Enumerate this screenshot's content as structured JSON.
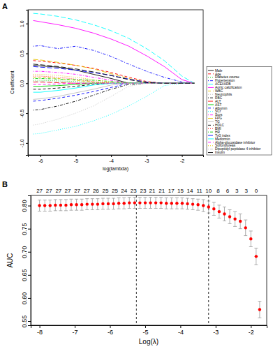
{
  "chart_data": [
    {
      "type": "line",
      "title": "A",
      "x_label": "log(lambda)",
      "y_label": "Coefficient",
      "x": [
        -6.2,
        -6,
        -5.5,
        -5,
        -4.5,
        -4,
        -3.5,
        -3,
        -2.5,
        -2,
        -1.65
      ],
      "xlim": [
        -6.35,
        -1.4
      ],
      "xticks": [
        -6,
        -5,
        -4,
        -3,
        -2
      ],
      "ylim": [
        -1.2,
        1.23
      ],
      "yticks": [
        {
          "value": -1,
          "label": "-1.0"
        },
        -0.5,
        {
          "value": 0,
          "label": "0.0"
        },
        0.5,
        {
          "value": 1,
          "label": "1.0"
        }
      ],
      "legend": "right",
      "series": [
        {
          "name": "Male",
          "color": "black",
          "line_style": "solid",
          "values": [
            0.3,
            0.29,
            0.27,
            0.22,
            0.15,
            0.08,
            0,
            0,
            0,
            0,
            0
          ]
        },
        {
          "name": "Age",
          "color": "red",
          "line_style": "dashed",
          "values": [
            0.38,
            0.37,
            0.34,
            0.3,
            0.25,
            0.18,
            0.1,
            0.03,
            0,
            0,
            0
          ]
        },
        {
          "name": "Diabetes course",
          "color": "#00cd00",
          "line_style": "dotted",
          "values": [
            0.05,
            0.05,
            0.04,
            0.03,
            0.01,
            0,
            0,
            0,
            0,
            0,
            0
          ]
        },
        {
          "name": "Hypertension",
          "color": "blue",
          "line_style": "dotdash",
          "values": [
            0.62,
            0.63,
            0.58,
            0.62,
            0.55,
            0.45,
            0.32,
            0.2,
            0.1,
            0.02,
            0
          ]
        },
        {
          "name": "ACEI/ARB",
          "color": "cyan",
          "line_style": "longdash",
          "values": [
            1.17,
            1.16,
            1.12,
            1.06,
            0.98,
            0.88,
            0.75,
            0.58,
            0.38,
            0.12,
            0
          ]
        },
        {
          "name": "Aortic calcification",
          "color": "magenta",
          "line_style": "solid",
          "values": [
            1.05,
            1.03,
            0.98,
            0.92,
            0.84,
            0.74,
            0.62,
            0.46,
            0.28,
            0.06,
            0
          ]
        },
        {
          "name": "WBC",
          "color": "#e6c200",
          "line_style": "dashed",
          "values": [
            0.1,
            0.1,
            0.08,
            0.05,
            0.02,
            0,
            0,
            0,
            0,
            0,
            0
          ]
        },
        {
          "name": "Neutrophils",
          "color": "#bebebe",
          "line_style": "dotted",
          "values": [
            -0.7,
            -0.68,
            -0.6,
            -0.5,
            -0.38,
            -0.22,
            -0.05,
            0,
            0,
            0,
            0
          ]
        },
        {
          "name": "RBC",
          "color": "black",
          "line_style": "dotdash",
          "values": [
            -0.45,
            -0.44,
            -0.38,
            -0.3,
            -0.2,
            -0.1,
            -0.02,
            0,
            0,
            0,
            0
          ]
        },
        {
          "name": "ALT",
          "color": "red",
          "line_style": "longdash",
          "values": [
            0.02,
            0.02,
            0.01,
            0,
            0,
            0,
            0,
            0,
            0,
            0,
            0
          ]
        },
        {
          "name": "AST",
          "color": "#00cd00",
          "line_style": "solid",
          "values": [
            -0.05,
            -0.05,
            -0.04,
            -0.02,
            0,
            0,
            0,
            0,
            0,
            0,
            0
          ]
        },
        {
          "name": "Albumin",
          "color": "blue",
          "line_style": "dashed",
          "values": [
            -0.3,
            -0.29,
            -0.25,
            -0.2,
            -0.14,
            -0.07,
            0,
            0,
            0,
            0,
            0
          ]
        },
        {
          "name": "SCr",
          "color": "cyan",
          "line_style": "dotted",
          "values": [
            -0.85,
            -0.84,
            -0.78,
            -0.72,
            -0.63,
            -0.52,
            -0.38,
            -0.22,
            -0.04,
            0,
            0
          ]
        },
        {
          "name": "Scys",
          "color": "magenta",
          "line_style": "dotdash",
          "values": [
            0.2,
            0.2,
            0.18,
            0.15,
            0.1,
            0.05,
            0,
            0,
            0,
            0,
            0
          ]
        },
        {
          "name": "FPG",
          "color": "#e6c200",
          "line_style": "longdash",
          "values": [
            0.4,
            0.39,
            0.35,
            0.3,
            0.24,
            0.16,
            0.08,
            0.02,
            0,
            0,
            0
          ]
        },
        {
          "name": "TG",
          "color": "#bebebe",
          "line_style": "solid",
          "values": [
            -0.27,
            -0.26,
            -0.22,
            -0.16,
            -0.1,
            -0.03,
            0,
            0,
            0,
            0,
            0
          ]
        },
        {
          "name": "HDLC",
          "color": "black",
          "line_style": "dashed",
          "values": [
            -0.1,
            -0.1,
            -0.08,
            -0.05,
            -0.02,
            0,
            0,
            0,
            0,
            0,
            0
          ]
        },
        {
          "name": "BMI",
          "color": "red",
          "line_style": "dotted",
          "values": [
            0.12,
            0.12,
            0.1,
            0.07,
            0.03,
            0,
            0,
            0,
            0,
            0,
            0
          ]
        },
        {
          "name": "HR",
          "color": "#00cd00",
          "line_style": "dotdash",
          "values": [
            0.08,
            0.08,
            0.07,
            0.06,
            0.05,
            0.03,
            0.01,
            0,
            0,
            0,
            0
          ]
        },
        {
          "name": "TyG index",
          "color": "blue",
          "line_style": "longdash",
          "values": [
            0.28,
            0.27,
            0.25,
            0.22,
            0.18,
            0.13,
            0.07,
            0.02,
            0,
            0,
            0
          ]
        },
        {
          "name": "Metformin",
          "color": "cyan",
          "line_style": "solid",
          "values": [
            -0.15,
            -0.15,
            -0.12,
            -0.08,
            -0.03,
            0,
            0,
            0,
            0,
            0,
            0
          ]
        },
        {
          "name": "Alpha-glucosidase inhibitor",
          "color": "magenta",
          "line_style": "dashed",
          "values": [
            -0.02,
            -0.02,
            -0.01,
            0,
            0,
            0,
            0,
            0,
            0,
            0,
            0
          ]
        },
        {
          "name": "Sulfonylureas",
          "color": "#e6c200",
          "line_style": "dotted",
          "values": [
            0.15,
            0.15,
            0.13,
            0.1,
            0.06,
            0.02,
            0,
            0,
            0,
            0,
            0
          ]
        },
        {
          "name": "Dipeptidyl peptidase 4 inhibitor",
          "color": "#bebebe",
          "line_style": "dotdash",
          "values": [
            0.03,
            0.03,
            0.02,
            0.01,
            0,
            0,
            0,
            0,
            0,
            0,
            0
          ]
        },
        {
          "name": "Insulin",
          "color": "black",
          "line_style": "longdash",
          "values": [
            0.32,
            0.31,
            0.28,
            0.24,
            0.19,
            0.13,
            0.06,
            0.01,
            0,
            0,
            0
          ]
        }
      ]
    },
    {
      "type": "scatter",
      "title": "B",
      "x_label": "Log(λ)",
      "y_label": "AUC",
      "color": "red",
      "x": [
        -8.0,
        -7.85,
        -7.7,
        -7.55,
        -7.4,
        -7.25,
        -7.1,
        -6.95,
        -6.8,
        -6.65,
        -6.5,
        -6.35,
        -6.2,
        -6.05,
        -5.9,
        -5.75,
        -5.6,
        -5.45,
        -5.3,
        -5.15,
        -5.0,
        -4.85,
        -4.7,
        -4.55,
        -4.4,
        -4.25,
        -4.1,
        -3.95,
        -3.8,
        -3.65,
        -3.5,
        -3.35,
        -3.2,
        -3.05,
        -2.9,
        -2.75,
        -2.6,
        -2.45,
        -2.3,
        -2.15,
        -2.0,
        -1.85,
        -1.75
      ],
      "values": [
        0.8,
        0.8,
        0.8,
        0.801,
        0.801,
        0.801,
        0.802,
        0.802,
        0.802,
        0.803,
        0.803,
        0.803,
        0.804,
        0.804,
        0.804,
        0.805,
        0.805,
        0.806,
        0.806,
        0.806,
        0.806,
        0.806,
        0.806,
        0.806,
        0.805,
        0.805,
        0.805,
        0.805,
        0.804,
        0.803,
        0.802,
        0.8,
        0.797,
        0.793,
        0.787,
        0.782,
        0.776,
        0.771,
        0.766,
        0.752,
        0.728,
        0.69,
        0.575
      ],
      "errors": [
        0.012,
        0.012,
        0.012,
        0.012,
        0.012,
        0.012,
        0.012,
        0.012,
        0.012,
        0.012,
        0.012,
        0.012,
        0.012,
        0.012,
        0.012,
        0.012,
        0.012,
        0.012,
        0.012,
        0.012,
        0.012,
        0.012,
        0.012,
        0.012,
        0.012,
        0.012,
        0.012,
        0.012,
        0.012,
        0.012,
        0.012,
        0.013,
        0.013,
        0.014,
        0.014,
        0.015,
        0.015,
        0.016,
        0.016,
        0.017,
        0.017,
        0.018,
        0.018
      ],
      "vlines": [
        -5.25,
        -3.2
      ],
      "nonzero": {
        "x": [
          -8.0,
          -7.73,
          -7.46,
          -7.2,
          -6.93,
          -6.66,
          -6.4,
          -6.13,
          -5.86,
          -5.6,
          -5.33,
          -5.06,
          -4.8,
          -4.53,
          -4.26,
          -4.0,
          -3.73,
          -3.46,
          -3.2,
          -2.93,
          -2.66,
          -2.4,
          -2.13,
          -1.85
        ],
        "counts": [
          27,
          27,
          27,
          27,
          27,
          27,
          26,
          25,
          25,
          24,
          23,
          23,
          21,
          21,
          17,
          15,
          14,
          11,
          10,
          8,
          6,
          3,
          3,
          0
        ]
      },
      "xlim": [
        -8.25,
        -1.55
      ],
      "xticks": [
        -8,
        -7,
        -6,
        -5,
        -4,
        -3,
        -2
      ],
      "ylim": [
        0.541,
        0.822
      ],
      "yticks": [
        0.55,
        {
          "value": 0.6,
          "label": "0.60"
        },
        0.65,
        {
          "value": 0.7,
          "label": "0.70"
        },
        0.75,
        {
          "value": 0.8,
          "label": "0.80"
        }
      ]
    }
  ]
}
